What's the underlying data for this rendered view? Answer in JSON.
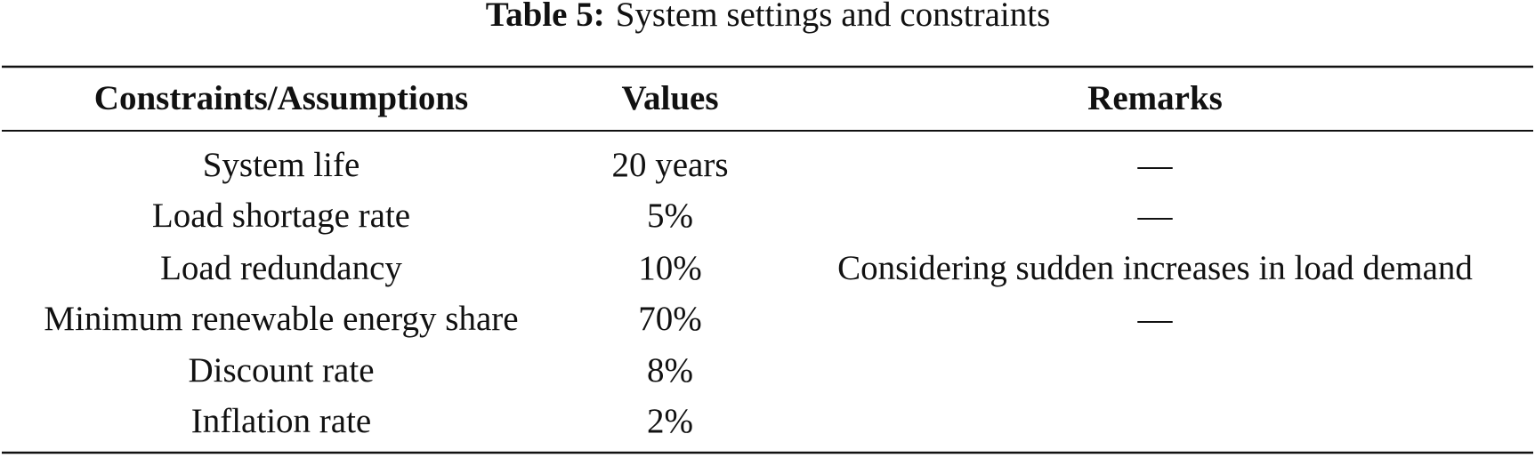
{
  "caption": {
    "label": "Table 5:",
    "text": "System settings and constraints"
  },
  "table": {
    "header": [
      "Constraints/Assumptions",
      "Values",
      "Remarks"
    ],
    "rows": [
      [
        "System life",
        "20 years",
        "—"
      ],
      [
        "Load shortage rate",
        "5%",
        "—"
      ],
      [
        "Load redundancy",
        "10%",
        "Considering sudden increases in load demand"
      ],
      [
        "Minimum renewable energy share",
        "70%",
        "—"
      ],
      [
        "Discount rate",
        "8%"
      ],
      [
        "Inflation rate",
        "2%"
      ]
    ]
  }
}
